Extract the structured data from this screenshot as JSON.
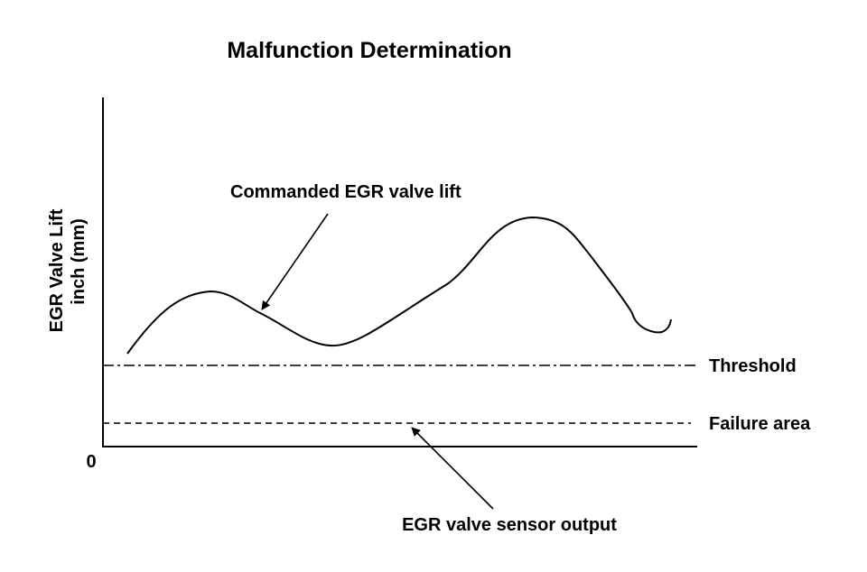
{
  "title": "Malfunction Determination",
  "y_axis": {
    "label_line1": "EGR Valve Lift",
    "label_line2": "inch (mm)",
    "origin_label": "0"
  },
  "lines": {
    "threshold_label": "Threshold",
    "failure_area_label": "Failure area"
  },
  "annotations": {
    "commanded_lift": "Commanded EGR valve lift",
    "sensor_output": "EGR valve sensor output"
  },
  "colors": {
    "ink": "#000000",
    "background": "#ffffff"
  }
}
